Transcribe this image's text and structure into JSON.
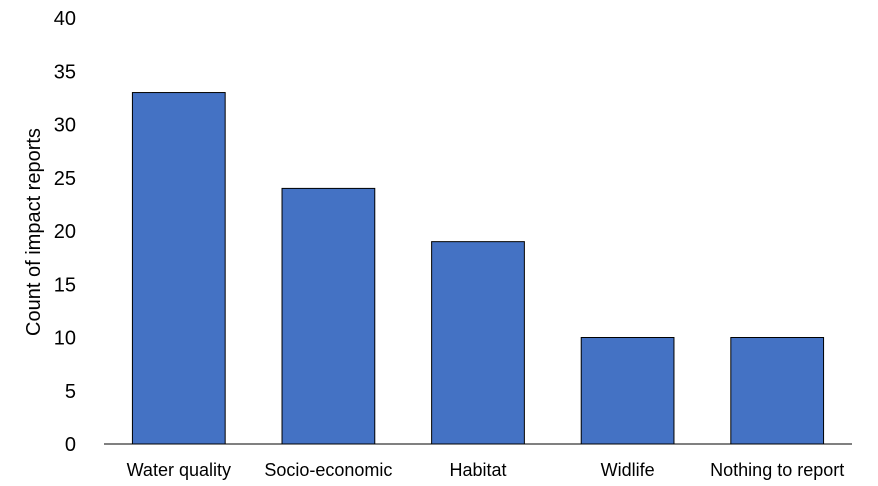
{
  "chart_data": {
    "type": "bar",
    "title": "",
    "xlabel": "",
    "ylabel": "Count of impact reports",
    "categories": [
      "Water quality",
      "Socio-economic",
      "Habitat",
      "Widlife",
      "Nothing to report"
    ],
    "values": [
      33,
      24,
      19,
      10,
      10
    ],
    "ylim": [
      0,
      40
    ],
    "yticks": [
      0,
      5,
      10,
      15,
      20,
      25,
      30,
      35,
      40
    ],
    "grid": false,
    "legend": "none",
    "bar_color": "#4472C4",
    "bar_edge_color": "#000000"
  }
}
